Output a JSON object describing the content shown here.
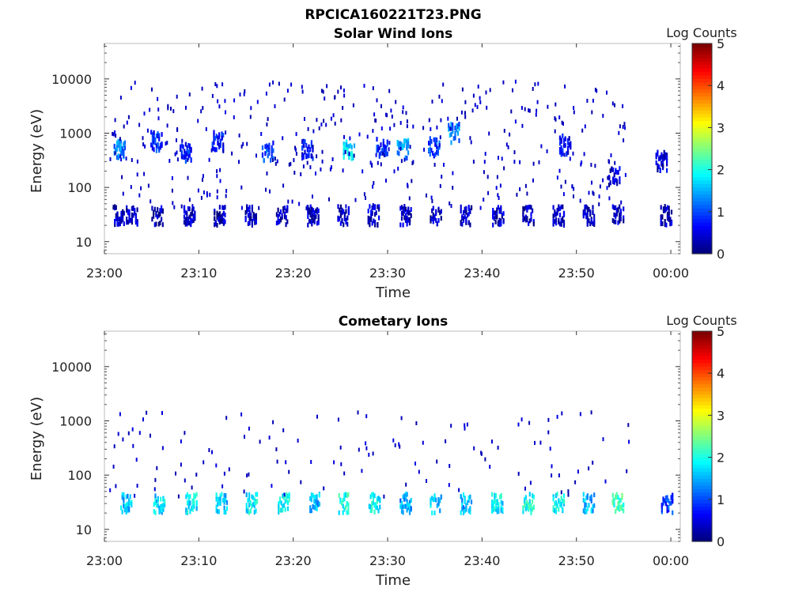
{
  "figure": {
    "title": "RPCICA160221T23.PNG"
  },
  "chart_data": [
    {
      "type": "heatmap",
      "title": "Solar Wind Ions",
      "xlabel": "Time",
      "ylabel": "Energy (eV)",
      "x_ticks": [
        "23:00",
        "23:10",
        "23:20",
        "23:30",
        "23:40",
        "23:50",
        "00:00"
      ],
      "y_ticks": [
        "10",
        "100",
        "1000",
        "10000"
      ],
      "y_scale": "log",
      "ylim": [
        6,
        45000
      ],
      "xlim_minutes": [
        0,
        61
      ],
      "colorbar": {
        "label": "Log Counts",
        "ticks": [
          "0",
          "1",
          "2",
          "3",
          "4",
          "5"
        ],
        "range": [
          0,
          5
        ],
        "colormap": "jet"
      },
      "bursts": [
        {
          "t": 1.5,
          "e": 30,
          "c": 0.3
        },
        {
          "t": 2.9,
          "e": 30,
          "c": 0.3
        },
        {
          "t": 5.6,
          "e": 30,
          "c": 0.3
        },
        {
          "t": 9.0,
          "e": 30,
          "c": 0.3
        },
        {
          "t": 12.2,
          "e": 30,
          "c": 0.3
        },
        {
          "t": 15.5,
          "e": 30,
          "c": 0.3
        },
        {
          "t": 18.8,
          "e": 30,
          "c": 0.3
        },
        {
          "t": 22.1,
          "e": 30,
          "c": 0.3
        },
        {
          "t": 25.3,
          "e": 30,
          "c": 0.3
        },
        {
          "t": 28.5,
          "e": 30,
          "c": 0.3
        },
        {
          "t": 31.9,
          "e": 30,
          "c": 0.3
        },
        {
          "t": 35.1,
          "e": 30,
          "c": 0.3
        },
        {
          "t": 38.3,
          "e": 30,
          "c": 0.3
        },
        {
          "t": 41.7,
          "e": 30,
          "c": 0.3
        },
        {
          "t": 44.9,
          "e": 30,
          "c": 0.3
        },
        {
          "t": 48.1,
          "e": 30,
          "c": 0.3
        },
        {
          "t": 51.3,
          "e": 30,
          "c": 0.3
        },
        {
          "t": 54.4,
          "e": 30,
          "c": 0.3
        },
        {
          "t": 59.5,
          "e": 30,
          "c": 0.3
        },
        {
          "t": 1.6,
          "e": 500,
          "c": 1.3
        },
        {
          "t": 5.5,
          "e": 700,
          "c": 0.8
        },
        {
          "t": 8.6,
          "e": 450,
          "c": 0.7
        },
        {
          "t": 12.0,
          "e": 700,
          "c": 0.7
        },
        {
          "t": 17.3,
          "e": 450,
          "c": 0.9
        },
        {
          "t": 21.5,
          "e": 500,
          "c": 0.6
        },
        {
          "t": 25.9,
          "e": 500,
          "c": 1.7
        },
        {
          "t": 29.4,
          "e": 550,
          "c": 0.8
        },
        {
          "t": 31.6,
          "e": 500,
          "c": 1.3
        },
        {
          "t": 34.9,
          "e": 550,
          "c": 0.9
        },
        {
          "t": 37.0,
          "e": 1000,
          "c": 1.2
        },
        {
          "t": 48.8,
          "e": 600,
          "c": 0.6
        },
        {
          "t": 54.0,
          "e": 150,
          "c": 0.4
        },
        {
          "t": 59.0,
          "e": 300,
          "c": 0.4
        }
      ]
    },
    {
      "type": "heatmap",
      "title": "Cometary Ions",
      "xlabel": "Time",
      "ylabel": "Energy (eV)",
      "x_ticks": [
        "23:00",
        "23:10",
        "23:20",
        "23:30",
        "23:40",
        "23:50",
        "00:00"
      ],
      "y_ticks": [
        "10",
        "100",
        "1000",
        "10000"
      ],
      "y_scale": "log",
      "ylim": [
        6,
        45000
      ],
      "xlim_minutes": [
        0,
        61
      ],
      "colorbar": {
        "label": "Log Counts",
        "ticks": [
          "0",
          "1",
          "2",
          "3",
          "4",
          "5"
        ],
        "range": [
          0,
          5
        ],
        "colormap": "jet"
      },
      "bursts": [
        {
          "t": 2.3,
          "e": 30,
          "c": 1.6
        },
        {
          "t": 5.8,
          "e": 30,
          "c": 1.7
        },
        {
          "t": 9.2,
          "e": 30,
          "c": 1.8
        },
        {
          "t": 12.4,
          "e": 30,
          "c": 1.6
        },
        {
          "t": 15.6,
          "e": 30,
          "c": 1.8
        },
        {
          "t": 19.0,
          "e": 30,
          "c": 1.9
        },
        {
          "t": 22.2,
          "e": 30,
          "c": 1.5
        },
        {
          "t": 25.4,
          "e": 30,
          "c": 2.0
        },
        {
          "t": 28.6,
          "e": 30,
          "c": 1.9
        },
        {
          "t": 31.9,
          "e": 30,
          "c": 1.4
        },
        {
          "t": 35.1,
          "e": 30,
          "c": 1.6
        },
        {
          "t": 38.3,
          "e": 30,
          "c": 1.5
        },
        {
          "t": 41.6,
          "e": 30,
          "c": 1.8
        },
        {
          "t": 44.9,
          "e": 30,
          "c": 2.0
        },
        {
          "t": 48.1,
          "e": 30,
          "c": 1.9
        },
        {
          "t": 51.3,
          "e": 30,
          "c": 1.5
        },
        {
          "t": 54.4,
          "e": 30,
          "c": 2.2
        },
        {
          "t": 59.6,
          "e": 30,
          "c": 0.9
        }
      ]
    }
  ]
}
